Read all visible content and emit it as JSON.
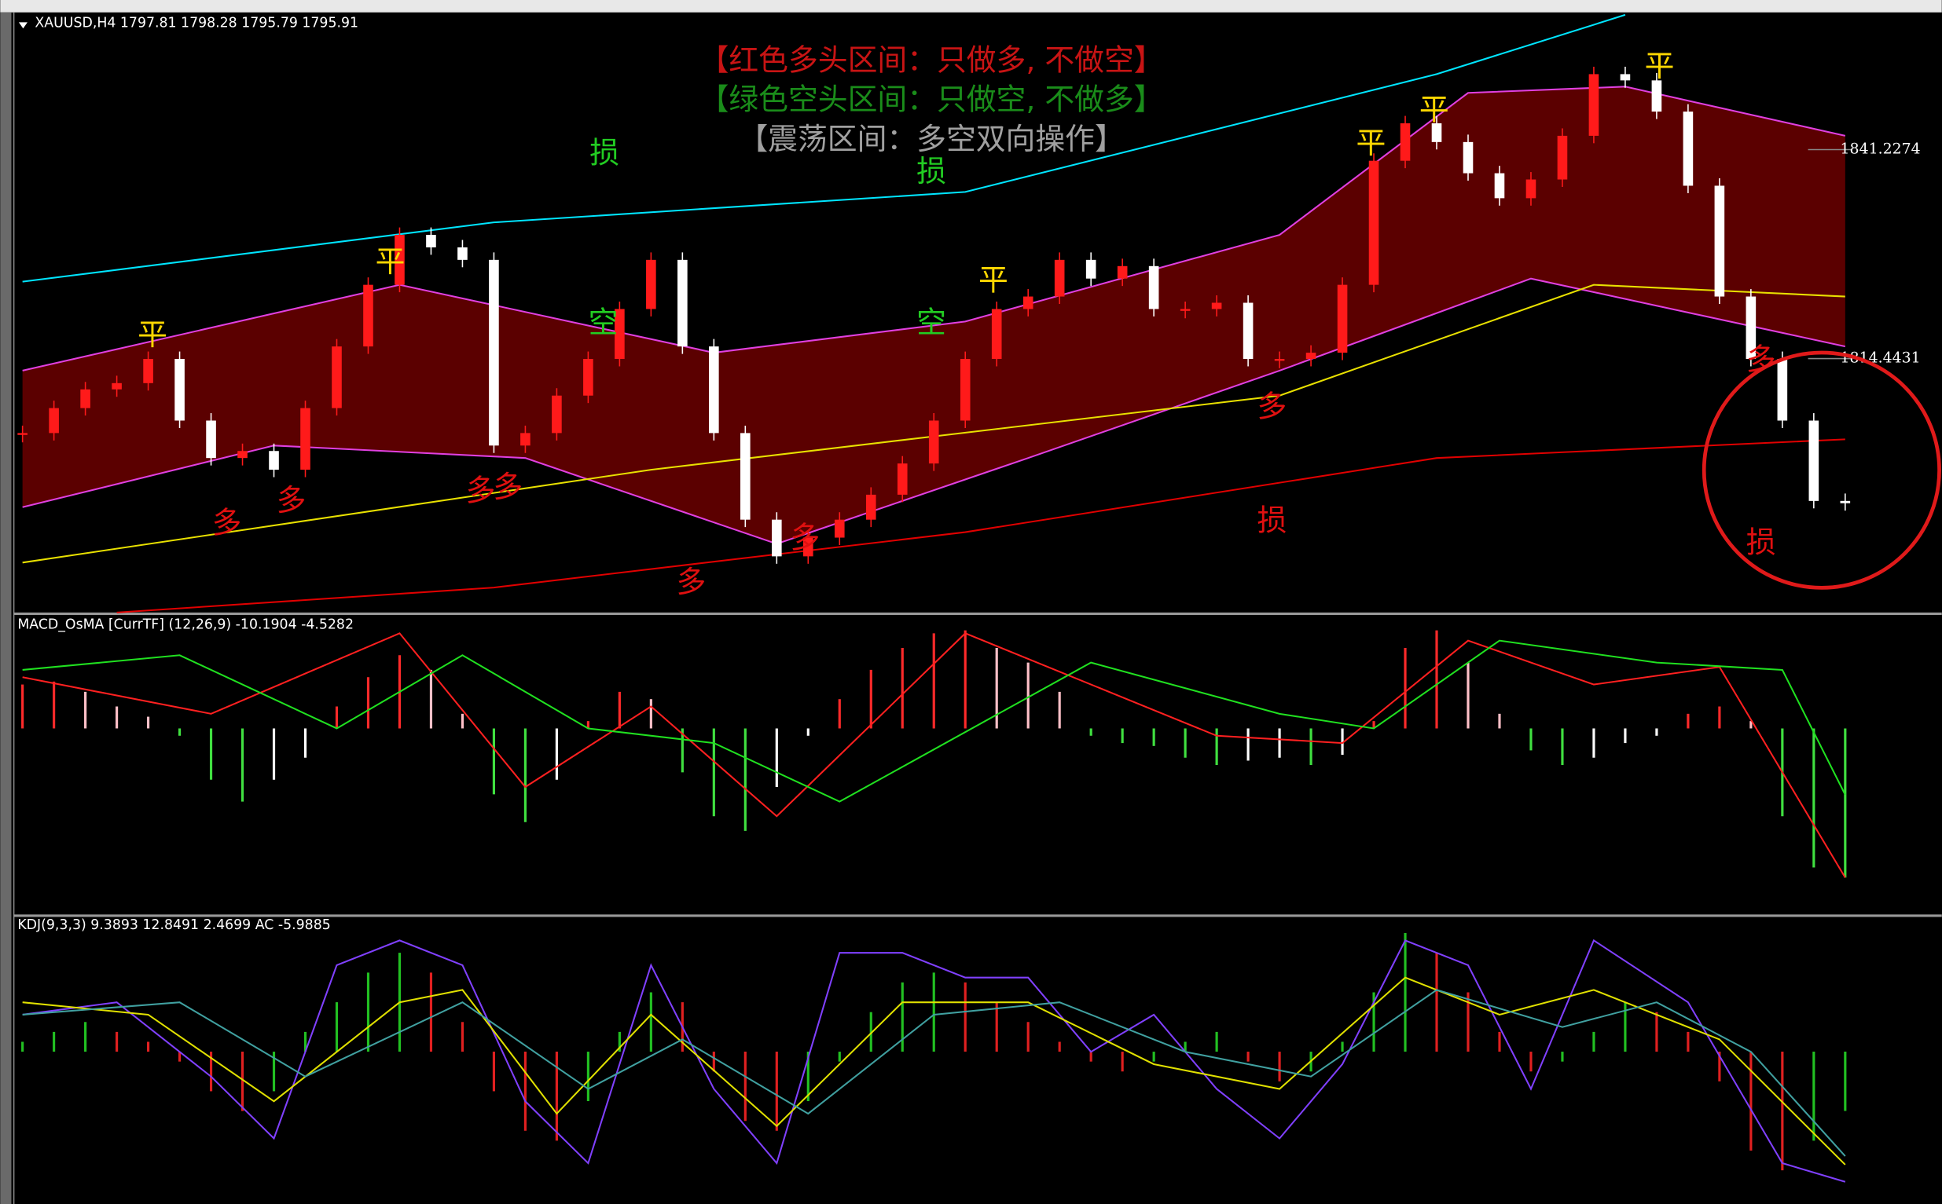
{
  "chart_data": [
    {
      "type": "candlestick",
      "title": "XAUUSD,H4  1797.81 1798.28 1795.79 1795.91",
      "closes": [
        1804.9,
        1808.1,
        1810.5,
        1811.3,
        1814.4,
        1806.5,
        1801.7,
        1802.6,
        1800.2,
        1808.1,
        1816.0,
        1823.9,
        1830.3,
        1828.7,
        1827.1,
        1803.3,
        1804.9,
        1809.7,
        1814.4,
        1820.8,
        1827.1,
        1816.0,
        1804.9,
        1793.8,
        1789.1,
        1791.5,
        1793.8,
        1797.0,
        1801.0,
        1806.5,
        1814.4,
        1820.8,
        1822.4,
        1827.1,
        1824.7,
        1826.3,
        1820.8,
        1820.8,
        1821.6,
        1814.4,
        1814.4,
        1815.2,
        1823.9,
        1839.8,
        1844.6,
        1842.2,
        1838.2,
        1835.0,
        1837.4,
        1843.0,
        1850.9,
        1850.1,
        1846.1,
        1836.6,
        1822.4,
        1814.4,
        1806.5,
        1796.2,
        1795.91
      ],
      "up_color": "#ff1a1a",
      "down_color": "#ffffff",
      "ylim": [
        1781.9,
        1858.5
      ],
      "yticks": [
        1841.2274,
        1814.4431
      ],
      "lines": [
        {
          "color": "#00e5ff",
          "points": [
            [
              0,
              1824.3
            ],
            [
              15,
              1831.9
            ],
            [
              30,
              1835.8
            ],
            [
              45,
              1850.9
            ],
            [
              51,
              1858.5
            ]
          ]
        },
        {
          "color": "#e00000",
          "points": [
            [
              3,
              1781.9
            ],
            [
              15,
              1785.1
            ],
            [
              30,
              1792.2
            ],
            [
              45,
              1801.7
            ],
            [
              58,
              1804.1
            ]
          ]
        },
        {
          "color": "#e040e0",
          "points": [
            [
              0,
              1812.9
            ],
            [
              12,
              1823.9
            ],
            [
              22,
              1815.2
            ],
            [
              30,
              1819.2
            ],
            [
              40,
              1830.3
            ],
            [
              46,
              1848.5
            ],
            [
              51,
              1849.3
            ],
            [
              58,
              1843.0
            ]
          ]
        },
        {
          "color": "#e040e0",
          "points": [
            [
              0,
              1795.4
            ],
            [
              8,
              1803.3
            ],
            [
              16,
              1801.7
            ],
            [
              24,
              1790.7
            ],
            [
              32,
              1801.7
            ],
            [
              40,
              1812.9
            ],
            [
              48,
              1824.7
            ],
            [
              58,
              1816.0
            ]
          ]
        },
        {
          "color": "#e8e000",
          "points": [
            [
              0,
              1788.3
            ],
            [
              20,
              1800.2
            ],
            [
              40,
              1809.7
            ],
            [
              50,
              1823.9
            ],
            [
              58,
              1822.4
            ]
          ]
        }
      ]
    },
    {
      "type": "histogram-lines",
      "title": "MACD_OsMA [CurrTF] (12,26,9) -10.1904 -4.5282",
      "values": [
        3.0,
        3.2,
        2.5,
        1.5,
        0.8,
        -0.5,
        -3.5,
        -5.0,
        -3.5,
        -2.0,
        1.5,
        3.5,
        5.0,
        4.0,
        1.0,
        -4.5,
        -6.4,
        -3.5,
        0.5,
        2.5,
        2.0,
        -3.0,
        -6.0,
        -7.0,
        -4.0,
        -0.5,
        2.0,
        4.0,
        5.5,
        6.5,
        6.7,
        5.5,
        4.5,
        2.5,
        -0.5,
        -1.0,
        -1.2,
        -2.0,
        -2.5,
        -2.2,
        -2.0,
        -2.5,
        -1.8,
        0.5,
        5.5,
        6.7,
        4.5,
        1.0,
        -1.5,
        -2.5,
        -2.0,
        -1.0,
        -0.5,
        1.0,
        1.5,
        0.5,
        -6.0,
        -9.5,
        -10.1904
      ],
      "ylim": [
        -12.71,
        7.75
      ],
      "lines": [
        {
          "color": "#ff2020",
          "points": [
            [
              0,
              3.5
            ],
            [
              6,
              1
            ],
            [
              12,
              6.5
            ],
            [
              16,
              -4
            ],
            [
              20,
              1.5
            ],
            [
              24,
              -6
            ],
            [
              30,
              6.5
            ],
            [
              38,
              -0.5
            ],
            [
              42,
              -1
            ],
            [
              46,
              6
            ],
            [
              50,
              3
            ],
            [
              54,
              4.2
            ],
            [
              58,
              -10.1904
            ]
          ]
        },
        {
          "color": "#20e020",
          "points": [
            [
              0,
              4
            ],
            [
              5,
              5
            ],
            [
              10,
              0
            ],
            [
              14,
              5
            ],
            [
              18,
              0
            ],
            [
              22,
              -1
            ],
            [
              26,
              -5
            ],
            [
              34,
              4.5
            ],
            [
              40,
              1
            ],
            [
              43,
              0
            ],
            [
              47,
              6
            ],
            [
              52,
              4.5
            ],
            [
              56,
              4
            ],
            [
              58,
              -4.5282
            ]
          ]
        }
      ]
    },
    {
      "type": "histogram-lines",
      "title": "KDJ(9,3,3) 9.3893 12.8491 2.4699  AC -5.9885",
      "values": [
        1,
        2,
        3,
        2,
        1,
        -1,
        -4,
        -6,
        -4,
        2,
        5,
        8,
        10,
        8,
        3,
        -4,
        -8,
        -9,
        -5,
        2,
        6,
        5,
        -2,
        -7,
        -8,
        -5,
        -1,
        4,
        7,
        8,
        7,
        5,
        3,
        1,
        -1,
        -2,
        -1,
        1,
        2,
        -1,
        -3,
        -2,
        1,
        6,
        12,
        10,
        6,
        2,
        -2,
        -1,
        2,
        5,
        4,
        2,
        -3,
        -10,
        -12,
        -9,
        -5.9885
      ],
      "hist_lim": [
        -15.4,
        13.5
      ],
      "ylim": [
        -6.5,
        109
      ],
      "lines": [
        {
          "color": "#8040ff",
          "points": [
            [
              0,
              70
            ],
            [
              3,
              75
            ],
            [
              6,
              45
            ],
            [
              8,
              20
            ],
            [
              10,
              90
            ],
            [
              12,
              100
            ],
            [
              14,
              90
            ],
            [
              16,
              35
            ],
            [
              18,
              10
            ],
            [
              20,
              90
            ],
            [
              22,
              40
            ],
            [
              24,
              10
            ],
            [
              26,
              95
            ],
            [
              28,
              95
            ],
            [
              30,
              85
            ],
            [
              32,
              85
            ],
            [
              34,
              55
            ],
            [
              36,
              70
            ],
            [
              38,
              40
            ],
            [
              40,
              20
            ],
            [
              42,
              50
            ],
            [
              44,
              100
            ],
            [
              46,
              90
            ],
            [
              48,
              40
            ],
            [
              50,
              100
            ],
            [
              53,
              75
            ],
            [
              56,
              10
            ],
            [
              58,
              2.4699
            ]
          ]
        },
        {
          "color": "#e0e000",
          "points": [
            [
              0,
              75
            ],
            [
              4,
              70
            ],
            [
              8,
              35
            ],
            [
              12,
              75
            ],
            [
              14,
              80
            ],
            [
              17,
              30
            ],
            [
              20,
              70
            ],
            [
              24,
              25
            ],
            [
              28,
              75
            ],
            [
              32,
              75
            ],
            [
              36,
              50
            ],
            [
              40,
              40
            ],
            [
              44,
              85
            ],
            [
              47,
              70
            ],
            [
              50,
              80
            ],
            [
              54,
              60
            ],
            [
              58,
              9.3893
            ]
          ]
        },
        {
          "color": "#40a0a0",
          "points": [
            [
              0,
              70
            ],
            [
              5,
              75
            ],
            [
              9,
              45
            ],
            [
              14,
              75
            ],
            [
              18,
              40
            ],
            [
              21,
              60
            ],
            [
              25,
              30
            ],
            [
              29,
              70
            ],
            [
              33,
              75
            ],
            [
              37,
              55
            ],
            [
              41,
              45
            ],
            [
              45,
              80
            ],
            [
              49,
              65
            ],
            [
              52,
              75
            ],
            [
              55,
              55
            ],
            [
              58,
              12.8491
            ]
          ]
        }
      ]
    }
  ],
  "banner": [
    "【红色多头区间：只做多, 不做空】",
    "【绿色空头区间：只做空, 不做多】",
    "【震荡区间：多空双向操作】"
  ],
  "annotations": [
    "平",
    "平",
    "平",
    "平",
    "平",
    "平",
    "空",
    "空",
    "损",
    "损",
    "多",
    "多",
    "多",
    "多",
    "多",
    "多",
    "多",
    "多",
    "损",
    "损"
  ]
}
